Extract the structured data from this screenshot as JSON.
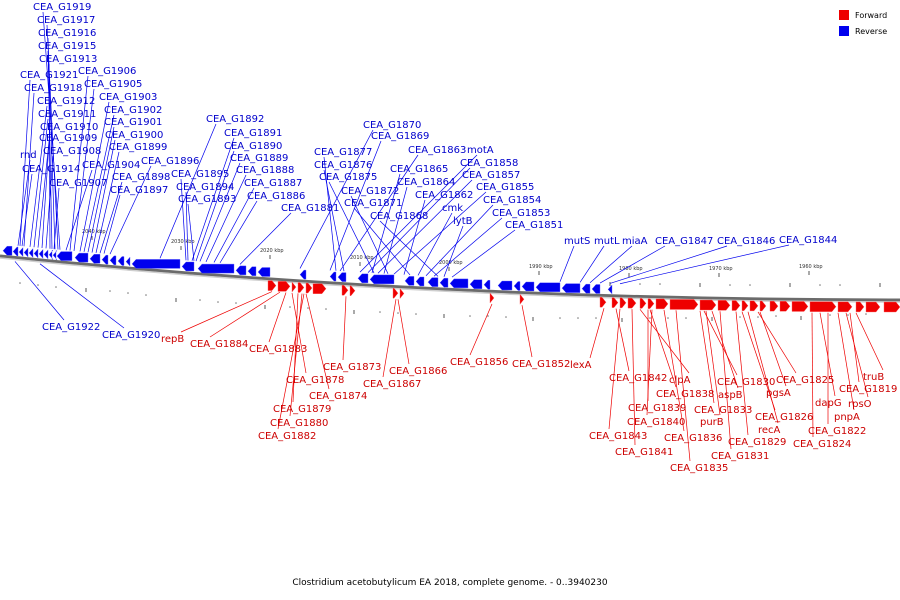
{
  "caption": "Clostridium acetobutylicum EA 2018, complete genome. - 0..3940230",
  "legend": [
    {
      "label": "Forward",
      "color": "#ee0000"
    },
    {
      "label": "Reverse",
      "color": "#0000ee"
    }
  ],
  "colors": {
    "forward": "#ee0000",
    "reverse": "#0000ee",
    "backbone": "#666666"
  },
  "scale_ticks": [
    "2040 kbp",
    "2030 kbp",
    "2020 kbp",
    "2010 kbp",
    "2000 kbp",
    "1990 kbp",
    "1980 kbp",
    "1970 kbp",
    "1960 kbp"
  ],
  "reverse_labels": [
    "CEA_G1919",
    "CEA_G1917",
    "CEA_G1916",
    "CEA_G1915",
    "CEA_G1913",
    "CEA_G1921",
    "CEA_G1906",
    "CEA_G1918",
    "CEA_G1905",
    "CEA_G1912",
    "CEA_G1903",
    "CEA_G1911",
    "CEA_G1902",
    "CEA_G1910",
    "CEA_G1901",
    "CEA_G1909",
    "CEA_G1900",
    "rnd",
    "CEA_G1908",
    "CEA_G1899",
    "CEA_G1896",
    "CEA_G1914",
    "CEA_G1904",
    "CEA_G1898",
    "CEA_G1907",
    "CEA_G1897",
    "CEA_G1892",
    "CEA_G1891",
    "CEA_G1890",
    "CEA_G1889",
    "CEA_G1888",
    "CEA_G1895",
    "CEA_G1887",
    "CEA_G1894",
    "CEA_G1886",
    "CEA_G1893",
    "CEA_G1881",
    "CEA_G1870",
    "CEA_G1869",
    "CEA_G1877",
    "CEA_G1863",
    "motA",
    "CEA_G1876",
    "CEA_G1858",
    "CEA_G1865",
    "CEA_G1875",
    "CEA_G1857",
    "CEA_G1864",
    "CEA_G1872",
    "CEA_G1855",
    "CEA_G1862",
    "CEA_G1871",
    "cmk",
    "CEA_G1854",
    "CEA_G1853",
    "CEA_G1868",
    "lytB",
    "CEA_G1851",
    "mutS",
    "mutL",
    "miaA",
    "CEA_G1847",
    "CEA_G1846",
    "CEA_G1844",
    "CEA_G1922",
    "CEA_G1920"
  ],
  "forward_labels": [
    "repB",
    "CEA_G1884",
    "CEA_G1883",
    "CEA_G1873",
    "CEA_G1878",
    "CEA_G1867",
    "CEA_G1866",
    "CEA_G1874",
    "CEA_G1879",
    "CEA_G1880",
    "CEA_G1882",
    "CEA_G1856",
    "CEA_G1852",
    "lexA",
    "CEA_G1842",
    "clpA",
    "CEA_G1838",
    "CEA_G1830",
    "CEA_G1825",
    "aspB",
    "CEA_G1839",
    "pgsA",
    "CEA_G1833",
    "CEA_G1819",
    "truB",
    "dapG",
    "rpsO",
    "CEA_G1826",
    "CEA_G1840",
    "purB",
    "pnpA",
    "recA",
    "CEA_G1822",
    "CEA_G1843",
    "CEA_G1836",
    "CEA_G1829",
    "CEA_G1824",
    "CEA_G1841",
    "CEA_G1831",
    "CEA_G1835"
  ]
}
